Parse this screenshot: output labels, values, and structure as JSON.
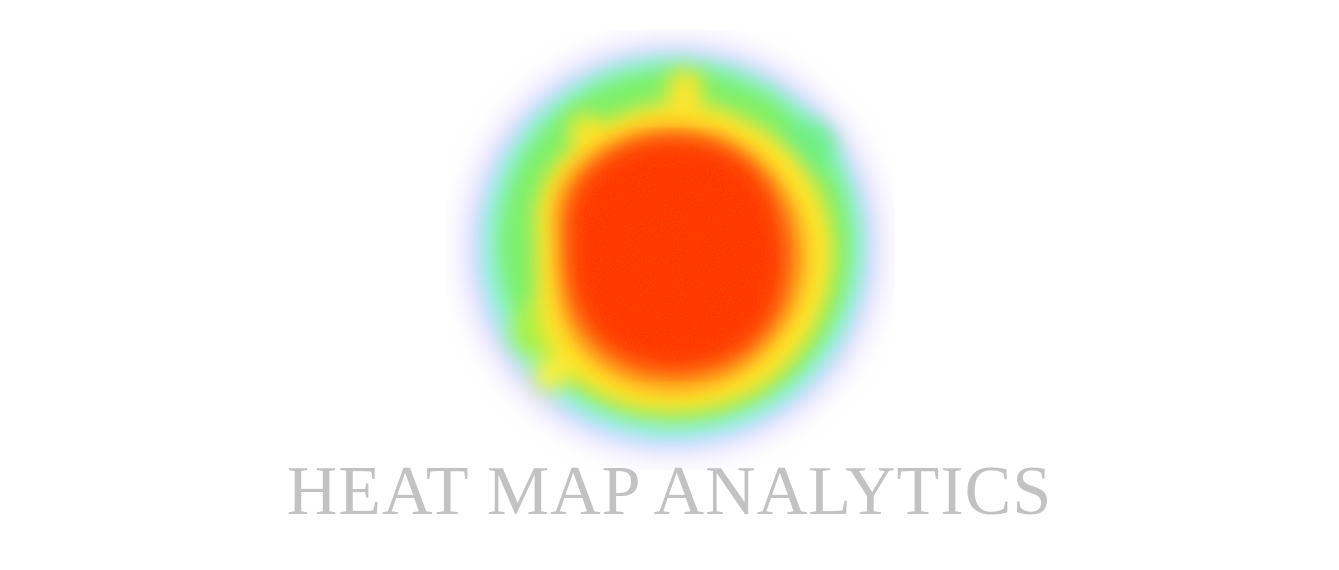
{
  "logo": {
    "title": "HEAT MAP ANALYTICS",
    "text_color": "#c2c2c2"
  },
  "heatmap": {
    "gradient_colors": [
      "#ff1500",
      "#ff7a10",
      "#ffe32a",
      "#a7f23e",
      "#5ef07a",
      "#8ff4e8",
      "#d7c9ff",
      "#ffffff"
    ]
  }
}
